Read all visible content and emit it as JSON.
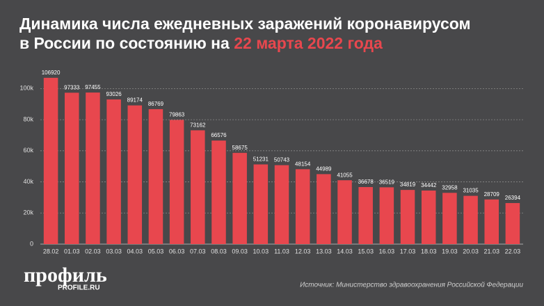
{
  "logo": {
    "name": "профиль",
    "url": "PROFILE.RU"
  },
  "chart_data": {
    "type": "bar",
    "title_line1": "Динамика числа ежедневных заражений коронавирусом",
    "title_line2": "в России по состоянию на ",
    "title_highlight": "22 марта 2022 года",
    "source": "Источник: Министерство здравоохранения Российской Федерации",
    "categories": [
      "28.02",
      "01.03",
      "02.03",
      "03.03",
      "04.03",
      "05.03",
      "06.03",
      "07.03",
      "08.03",
      "09.03",
      "10.03",
      "11.03",
      "12.03",
      "13.03",
      "14.03",
      "15.03",
      "16.03",
      "17.03",
      "18.03",
      "19.03",
      "20.03",
      "21.03",
      "22.03"
    ],
    "values": [
      106920,
      97333,
      97455,
      93026,
      89174,
      86769,
      79863,
      73162,
      66576,
      58675,
      51231,
      50743,
      48154,
      44989,
      41055,
      36678,
      36519,
      34819,
      34442,
      32958,
      31035,
      28709,
      26394
    ],
    "color": "#e8474e",
    "ylim": [
      0,
      110000
    ],
    "yticks": [
      0,
      {
        "value": 20000,
        "label": "20k"
      },
      {
        "value": 40000,
        "label": "40k"
      },
      {
        "value": 60000,
        "label": "60k"
      },
      {
        "value": 80000,
        "label": "80k"
      },
      {
        "value": 100000,
        "label": "100k"
      }
    ],
    "grid": true
  }
}
